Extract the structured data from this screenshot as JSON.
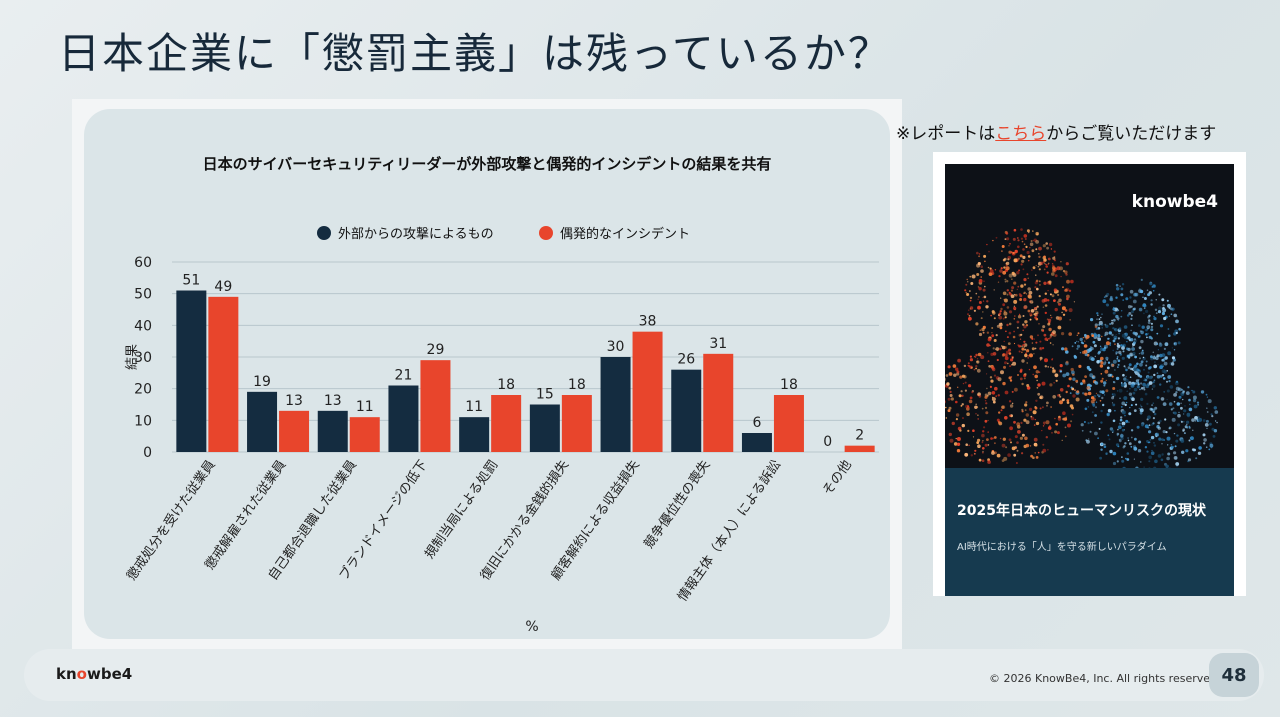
{
  "slide": {
    "title": "日本企業に「懲罰主義」は残っているか？",
    "note_prefix": "※レポートは",
    "note_link": "こちら",
    "note_suffix": "からご覧いただけます",
    "page_number": "48",
    "copyright": "© 2026 KnowBe4, Inc. All rights reserved.",
    "brand": {
      "prefix": "kn",
      "mid": "o",
      "suffix": "wbe4"
    }
  },
  "report_cover": {
    "logo": "knowbe4",
    "title": "2025年日本のヒューマンリスクの現状",
    "subtitle": "AI時代における「人」を守る新しいパラダイム"
  },
  "colors": {
    "external": "#142c40",
    "accidental": "#e8452c",
    "card": "#dbe5e8"
  },
  "chart_data": {
    "type": "bar",
    "title": "日本のサイバーセキュリティリーダーが外部攻撃と偶発的インシデントの結果を共有",
    "categories": [
      "懲戒処分を受けた従業員",
      "懲戒解雇された従業員",
      "自己都合退職した従業員",
      "ブランドイメージの低下",
      "規制当局による処罰",
      "復旧にかかる金銭的損失",
      "顧客解約による収益損失",
      "競争優位性の喪失",
      "情報主体（本人）による訴訟",
      "その他"
    ],
    "series": [
      {
        "name": "外部からの攻撃によるもの",
        "values": [
          51,
          19,
          13,
          21,
          11,
          15,
          30,
          26,
          6,
          0
        ]
      },
      {
        "name": "偶発的なインシデント",
        "values": [
          49,
          13,
          11,
          29,
          18,
          18,
          38,
          31,
          18,
          2
        ]
      }
    ],
    "xlabel": "%",
    "ylabel": "結果",
    "ylim": [
      0,
      60
    ],
    "yticks": [
      0,
      10,
      20,
      30,
      40,
      50,
      60
    ],
    "grid": true,
    "legend": "top-center"
  }
}
